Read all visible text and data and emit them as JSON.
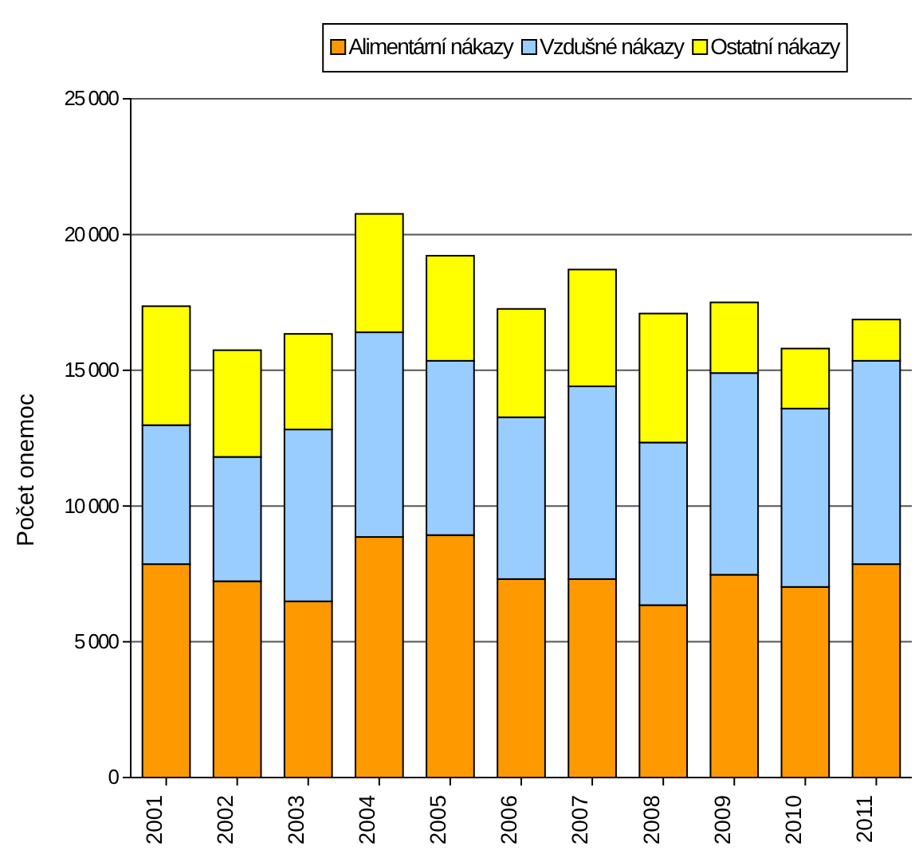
{
  "chart_data": {
    "type": "bar",
    "stacked": true,
    "ylabel": "Počet onemoc",
    "categories": [
      "2001",
      "2002",
      "2003",
      "2004",
      "2005",
      "2006",
      "2007",
      "2008",
      "2009",
      "2010",
      "2011"
    ],
    "series": [
      {
        "name": "Alimentární nákazy",
        "color": "#ff9900",
        "values": [
          7860,
          7230,
          6490,
          8860,
          8930,
          7310,
          7310,
          6350,
          7470,
          7020,
          7860
        ]
      },
      {
        "name": "Vzdušné nákazy",
        "color": "#99ccff",
        "values": [
          5120,
          4580,
          6330,
          7540,
          6420,
          5960,
          7100,
          5990,
          7430,
          6570,
          7490
        ]
      },
      {
        "name": "Ostatní  nákazy",
        "color": "#ffff00",
        "values": [
          4380,
          3930,
          3520,
          4360,
          3870,
          3990,
          4300,
          4750,
          2600,
          2210,
          1520
        ]
      }
    ],
    "ylim": [
      0,
      25000
    ],
    "yticks": [
      0,
      {
        "value": 5000,
        "label": "5 000"
      },
      {
        "value": 10000,
        "label": "10 000"
      },
      {
        "value": 15000,
        "label": "15 000"
      },
      {
        "value": 20000,
        "label": "20 000"
      },
      {
        "value": 25000,
        "label": "25 000"
      }
    ],
    "grid": "y",
    "legend": "top"
  }
}
